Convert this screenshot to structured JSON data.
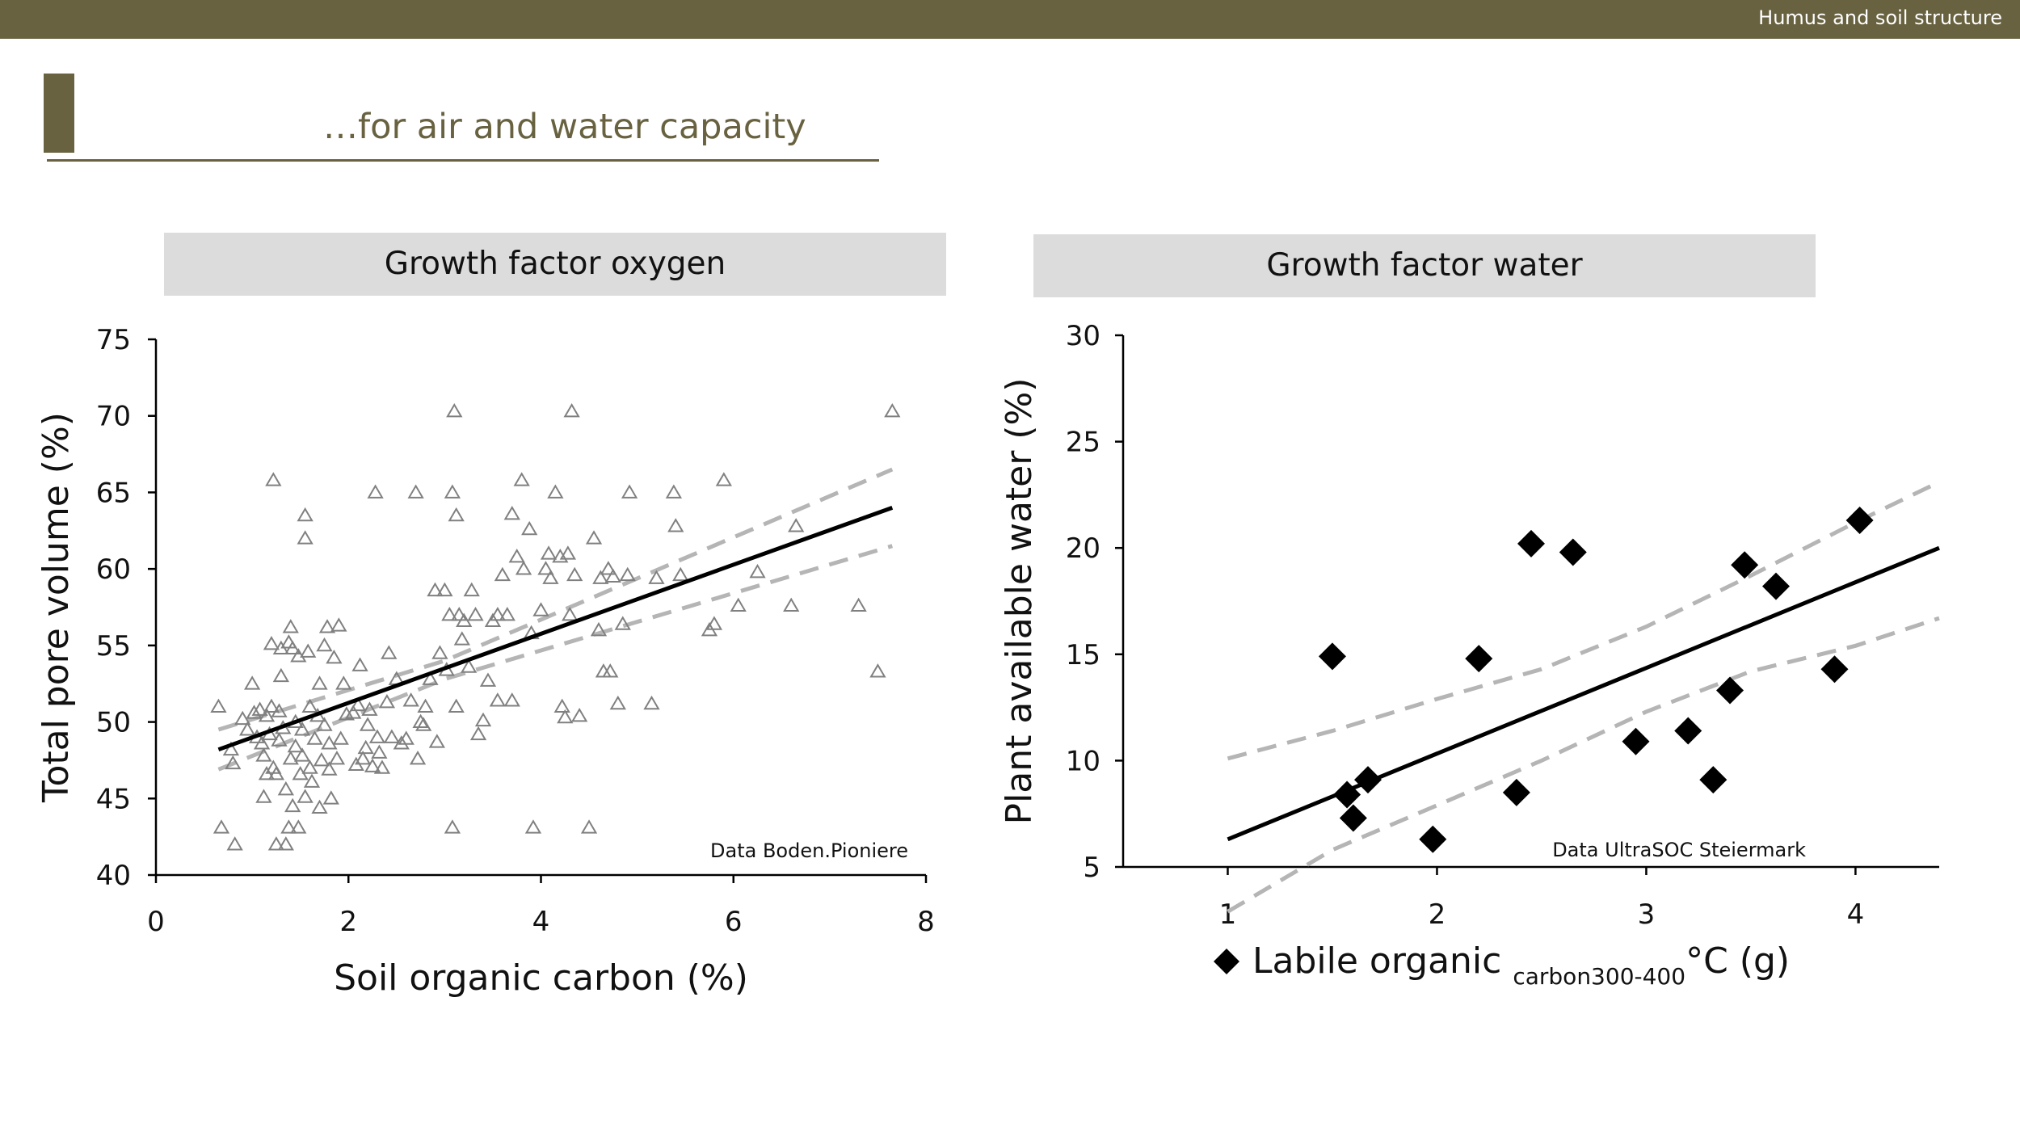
{
  "header": {
    "section_label": "Humus and soil structure",
    "slide_title": "…for air and water capacity",
    "accent_color": "#686240"
  },
  "panels": {
    "left_title": "Growth factor oxygen",
    "right_title": "Growth factor water"
  },
  "chart_data": [
    {
      "type": "scatter",
      "title": "Growth factor oxygen",
      "xlabel": "Soil organic carbon (%)",
      "ylabel": "Total pore volume (%)",
      "xlim": [
        0,
        8
      ],
      "ylim": [
        40,
        75
      ],
      "xticks": [
        0,
        2,
        4,
        6,
        8
      ],
      "yticks": [
        40,
        45,
        50,
        55,
        60,
        65,
        70,
        75
      ],
      "marker": "open-triangle",
      "marker_color": "#808080",
      "source_note": "Data Boden.Pioniere",
      "points": [
        [
          0.65,
          51.0
        ],
        [
          0.68,
          43.1
        ],
        [
          0.78,
          48.2
        ],
        [
          0.8,
          47.3
        ],
        [
          0.82,
          42.0
        ],
        [
          0.9,
          50.2
        ],
        [
          0.95,
          49.5
        ],
        [
          1.0,
          52.5
        ],
        [
          1.02,
          50.6
        ],
        [
          1.05,
          49.0
        ],
        [
          1.08,
          50.8
        ],
        [
          1.1,
          48.6
        ],
        [
          1.12,
          47.8
        ],
        [
          1.12,
          45.1
        ],
        [
          1.15,
          46.6
        ],
        [
          1.15,
          50.4
        ],
        [
          1.18,
          49.2
        ],
        [
          1.2,
          51.0
        ],
        [
          1.2,
          55.1
        ],
        [
          1.22,
          47.0
        ],
        [
          1.22,
          65.8
        ],
        [
          1.25,
          46.6
        ],
        [
          1.25,
          42.0
        ],
        [
          1.28,
          48.8
        ],
        [
          1.28,
          50.7
        ],
        [
          1.3,
          54.8
        ],
        [
          1.3,
          53.0
        ],
        [
          1.32,
          49.6
        ],
        [
          1.35,
          42.0
        ],
        [
          1.35,
          45.6
        ],
        [
          1.38,
          55.2
        ],
        [
          1.38,
          43.1
        ],
        [
          1.4,
          47.6
        ],
        [
          1.4,
          56.2
        ],
        [
          1.42,
          44.5
        ],
        [
          1.42,
          54.8
        ],
        [
          1.45,
          48.4
        ],
        [
          1.45,
          50.0
        ],
        [
          1.48,
          43.1
        ],
        [
          1.48,
          54.3
        ],
        [
          1.5,
          46.6
        ],
        [
          1.52,
          47.8
        ],
        [
          1.52,
          49.5
        ],
        [
          1.55,
          62.0
        ],
        [
          1.55,
          63.5
        ],
        [
          1.55,
          45.1
        ],
        [
          1.58,
          54.6
        ],
        [
          1.6,
          51.0
        ],
        [
          1.6,
          47.0
        ],
        [
          1.62,
          46.1
        ],
        [
          1.65,
          48.9
        ],
        [
          1.68,
          50.4
        ],
        [
          1.7,
          52.5
        ],
        [
          1.7,
          44.4
        ],
        [
          1.72,
          47.5
        ],
        [
          1.75,
          49.8
        ],
        [
          1.75,
          55.0
        ],
        [
          1.78,
          56.2
        ],
        [
          1.8,
          46.9
        ],
        [
          1.8,
          48.6
        ],
        [
          1.82,
          45.0
        ],
        [
          1.85,
          54.2
        ],
        [
          1.88,
          47.6
        ],
        [
          1.9,
          56.3
        ],
        [
          1.92,
          48.9
        ],
        [
          1.95,
          52.5
        ],
        [
          1.98,
          50.5
        ],
        [
          2.05,
          50.6
        ],
        [
          2.08,
          47.2
        ],
        [
          2.1,
          51.1
        ],
        [
          2.12,
          53.7
        ],
        [
          2.15,
          47.6
        ],
        [
          2.18,
          48.3
        ],
        [
          2.2,
          49.8
        ],
        [
          2.22,
          50.8
        ],
        [
          2.25,
          47.1
        ],
        [
          2.28,
          65.0
        ],
        [
          2.3,
          49.0
        ],
        [
          2.32,
          48.0
        ],
        [
          2.35,
          47.0
        ],
        [
          2.4,
          51.3
        ],
        [
          2.42,
          54.5
        ],
        [
          2.45,
          49.0
        ],
        [
          2.5,
          52.8
        ],
        [
          2.55,
          48.6
        ],
        [
          2.6,
          48.9
        ],
        [
          2.65,
          51.4
        ],
        [
          2.7,
          65.0
        ],
        [
          2.72,
          47.6
        ],
        [
          2.75,
          50.0
        ],
        [
          2.78,
          49.8
        ],
        [
          2.8,
          51.0
        ],
        [
          2.85,
          52.8
        ],
        [
          2.9,
          58.6
        ],
        [
          2.92,
          48.7
        ],
        [
          2.95,
          54.5
        ],
        [
          3.0,
          58.6
        ],
        [
          3.02,
          53.4
        ],
        [
          3.05,
          57.0
        ],
        [
          3.08,
          65.0
        ],
        [
          3.08,
          43.1
        ],
        [
          3.1,
          70.3
        ],
        [
          3.12,
          51.0
        ],
        [
          3.12,
          63.5
        ],
        [
          3.15,
          57.0
        ],
        [
          3.18,
          55.4
        ],
        [
          3.2,
          56.6
        ],
        [
          3.25,
          53.6
        ],
        [
          3.28,
          58.6
        ],
        [
          3.32,
          57.0
        ],
        [
          3.35,
          49.2
        ],
        [
          3.4,
          50.1
        ],
        [
          3.45,
          52.7
        ],
        [
          3.5,
          56.6
        ],
        [
          3.55,
          51.4
        ],
        [
          3.55,
          57.0
        ],
        [
          3.6,
          59.6
        ],
        [
          3.65,
          57.0
        ],
        [
          3.7,
          51.4
        ],
        [
          3.7,
          63.6
        ],
        [
          3.75,
          60.8
        ],
        [
          3.8,
          65.8
        ],
        [
          3.82,
          60.0
        ],
        [
          3.88,
          62.6
        ],
        [
          3.9,
          55.8
        ],
        [
          3.92,
          43.1
        ],
        [
          4.0,
          57.3
        ],
        [
          4.05,
          60.0
        ],
        [
          4.08,
          61.0
        ],
        [
          4.1,
          59.4
        ],
        [
          4.15,
          65.0
        ],
        [
          4.2,
          60.8
        ],
        [
          4.22,
          51.0
        ],
        [
          4.25,
          50.3
        ],
        [
          4.28,
          61.0
        ],
        [
          4.3,
          57.0
        ],
        [
          4.32,
          70.3
        ],
        [
          4.35,
          59.6
        ],
        [
          4.4,
          50.4
        ],
        [
          4.5,
          43.1
        ],
        [
          4.55,
          62.0
        ],
        [
          4.6,
          56.0
        ],
        [
          4.62,
          59.4
        ],
        [
          4.65,
          53.3
        ],
        [
          4.7,
          60.0
        ],
        [
          4.72,
          53.3
        ],
        [
          4.75,
          59.5
        ],
        [
          4.8,
          51.2
        ],
        [
          4.85,
          56.4
        ],
        [
          4.9,
          59.6
        ],
        [
          4.92,
          65.0
        ],
        [
          5.15,
          51.2
        ],
        [
          5.2,
          59.4
        ],
        [
          5.38,
          65.0
        ],
        [
          5.4,
          62.8
        ],
        [
          5.45,
          59.6
        ],
        [
          5.75,
          56.0
        ],
        [
          5.8,
          56.4
        ],
        [
          5.9,
          65.8
        ],
        [
          6.05,
          57.6
        ],
        [
          6.25,
          59.8
        ],
        [
          6.6,
          57.6
        ],
        [
          6.65,
          62.8
        ],
        [
          7.3,
          57.6
        ],
        [
          7.5,
          53.3
        ],
        [
          7.65,
          70.3
        ]
      ],
      "regression": {
        "x": [
          0.65,
          7.65
        ],
        "y": [
          48.2,
          64.0
        ]
      },
      "confidence_band": {
        "x": [
          0.65,
          3.0,
          7.65
        ],
        "upper": [
          49.5,
          54.0,
          66.5
        ],
        "lower": [
          46.9,
          52.8,
          61.5
        ]
      }
    },
    {
      "type": "scatter",
      "title": "Growth factor water",
      "xlabel": "Labile organic",
      "xlabel_subscript": "carbon300-400",
      "xlabel_suffix": "°C (g)",
      "ylabel": "Plant available water (%)",
      "xlim": [
        0.5,
        4.4
      ],
      "ylim": [
        5,
        30
      ],
      "xticks": [
        1,
        2,
        3,
        4
      ],
      "yticks": [
        5,
        10,
        15,
        20,
        25,
        30
      ],
      "marker": "filled-diamond",
      "marker_color": "#000000",
      "source_note": "Data UltraSOC Steiermark",
      "points": [
        [
          1.5,
          14.9
        ],
        [
          1.57,
          8.4
        ],
        [
          1.6,
          7.3
        ],
        [
          1.67,
          9.1
        ],
        [
          1.98,
          6.3
        ],
        [
          2.2,
          14.8
        ],
        [
          2.38,
          8.5
        ],
        [
          2.45,
          20.2
        ],
        [
          2.65,
          19.8
        ],
        [
          2.95,
          10.9
        ],
        [
          3.2,
          11.4
        ],
        [
          3.32,
          9.1
        ],
        [
          3.4,
          13.3
        ],
        [
          3.47,
          19.2
        ],
        [
          3.62,
          18.2
        ],
        [
          3.9,
          14.3
        ],
        [
          4.02,
          21.3
        ]
      ],
      "regression": {
        "x": [
          1.0,
          4.4
        ],
        "y": [
          6.3,
          20.0
        ]
      },
      "confidence_band": {
        "x": [
          1.0,
          1.5,
          2.0,
          2.5,
          3.0,
          3.5,
          4.0,
          4.4
        ],
        "upper": [
          10.1,
          11.4,
          12.9,
          14.3,
          16.3,
          18.7,
          21.2,
          23.1
        ],
        "lower": [
          2.9,
          5.8,
          7.9,
          10.0,
          12.3,
          14.2,
          15.4,
          16.7
        ]
      }
    }
  ]
}
